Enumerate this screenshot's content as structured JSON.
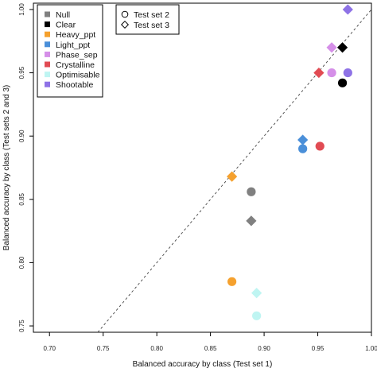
{
  "chart_data": {
    "type": "scatter",
    "xlabel": "Balanced accuracy by class (Test set 1)",
    "ylabel": "Balanced accuracy by class (Test sets 2 and 3)",
    "xlim": [
      0.685,
      1.0
    ],
    "ylim": [
      0.745,
      1.005
    ],
    "x_ticks": [
      "0.70",
      "0.75",
      "0.80",
      "0.85",
      "0.90",
      "0.95",
      "1.00"
    ],
    "y_ticks": [
      "0.75",
      "0.80",
      "0.85",
      "0.90",
      "0.95",
      "1.00"
    ],
    "reference_line": "y = x (dashed)",
    "grid": false,
    "class_legend": {
      "placement": "top-left",
      "entries": [
        {
          "name": "Null",
          "color": "#808080"
        },
        {
          "name": "Clear",
          "color": "#000000"
        },
        {
          "name": "Heavy_ppt",
          "color": "#F5A12E"
        },
        {
          "name": "Light_ppt",
          "color": "#4A8FD9"
        },
        {
          "name": "Phase_sep",
          "color": "#D58FE8"
        },
        {
          "name": "Crystalline",
          "color": "#E14B53"
        },
        {
          "name": "Optimisable",
          "color": "#BFF5F2"
        },
        {
          "name": "Shootable",
          "color": "#8E72E6"
        }
      ]
    },
    "shape_legend": {
      "placement": "top-left",
      "entries": [
        {
          "name": "Test set 2",
          "shape": "circle"
        },
        {
          "name": "Test set 3",
          "shape": "diamond"
        }
      ]
    },
    "points": [
      {
        "class": "Null",
        "set": "Test set 2",
        "x": 0.888,
        "y": 0.856
      },
      {
        "class": "Null",
        "set": "Test set 3",
        "x": 0.888,
        "y": 0.833
      },
      {
        "class": "Clear",
        "set": "Test set 2",
        "x": 0.973,
        "y": 0.942
      },
      {
        "class": "Clear",
        "set": "Test set 3",
        "x": 0.973,
        "y": 0.97
      },
      {
        "class": "Heavy_ppt",
        "set": "Test set 2",
        "x": 0.87,
        "y": 0.785
      },
      {
        "class": "Heavy_ppt",
        "set": "Test set 3",
        "x": 0.87,
        "y": 0.868
      },
      {
        "class": "Light_ppt",
        "set": "Test set 2",
        "x": 0.936,
        "y": 0.89
      },
      {
        "class": "Light_ppt",
        "set": "Test set 3",
        "x": 0.936,
        "y": 0.897
      },
      {
        "class": "Phase_sep",
        "set": "Test set 2",
        "x": 0.963,
        "y": 0.95
      },
      {
        "class": "Phase_sep",
        "set": "Test set 3",
        "x": 0.963,
        "y": 0.97
      },
      {
        "class": "Crystalline",
        "set": "Test set 2",
        "x": 0.952,
        "y": 0.892
      },
      {
        "class": "Crystalline",
        "set": "Test set 3",
        "x": 0.951,
        "y": 0.95
      },
      {
        "class": "Optimisable",
        "set": "Test set 2",
        "x": 0.893,
        "y": 0.758
      },
      {
        "class": "Optimisable",
        "set": "Test set 3",
        "x": 0.893,
        "y": 0.776
      },
      {
        "class": "Shootable",
        "set": "Test set 2",
        "x": 0.978,
        "y": 0.95
      },
      {
        "class": "Shootable",
        "set": "Test set 3",
        "x": 0.978,
        "y": 1.0
      }
    ]
  }
}
